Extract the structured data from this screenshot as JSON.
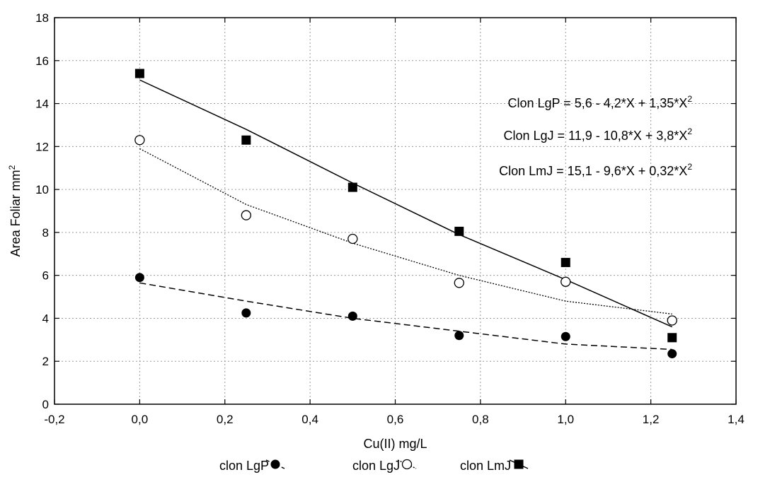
{
  "chart_data": {
    "type": "scatter",
    "xlabel": "Cu(II) mg/L",
    "ylabel": "Area Foliar mm",
    "ylabel_sup": "2",
    "xlim": [
      -0.2,
      1.4
    ],
    "ylim": [
      0,
      18
    ],
    "xticks": [
      -0.2,
      0.0,
      0.2,
      0.4,
      0.6,
      0.8,
      1.0,
      1.2,
      1.4
    ],
    "yticks": [
      0,
      2,
      4,
      6,
      8,
      10,
      12,
      14,
      16,
      18
    ],
    "decimal_separator": ",",
    "grid": true,
    "legend_position": "bottom",
    "x": [
      0.0,
      0.25,
      0.5,
      0.75,
      1.0,
      1.25
    ],
    "series": [
      {
        "name": "clon LgP",
        "marker": "filled-circle",
        "line": "dashed",
        "values": [
          5.9,
          4.25,
          4.1,
          3.2,
          3.15,
          2.35
        ],
        "fit": [
          5.65,
          4.8,
          4.0,
          3.4,
          2.8,
          2.55
        ]
      },
      {
        "name": "clon LgJ",
        "marker": "open-circle",
        "line": "dotted",
        "values": [
          12.3,
          8.8,
          7.7,
          5.65,
          5.7,
          3.9
        ],
        "fit": [
          11.9,
          9.3,
          7.5,
          6.0,
          4.8,
          4.2
        ]
      },
      {
        "name": "clon LmJ",
        "marker": "filled-square",
        "line": "solid",
        "values": [
          15.4,
          12.3,
          10.1,
          8.05,
          6.6,
          3.1
        ],
        "fit": [
          15.1,
          12.8,
          10.3,
          7.9,
          5.8,
          3.6
        ]
      }
    ],
    "annotations": [
      {
        "text": "Clon LgP = 5,6 - 4,2*X + 1,35*X",
        "sup": "2"
      },
      {
        "text": "Clon LgJ = 11,9 - 10,8*X + 3,8*X",
        "sup": "2"
      },
      {
        "text": "Clon LmJ = 15,1 - 9,6*X + 0,32*X",
        "sup": "2"
      }
    ]
  }
}
